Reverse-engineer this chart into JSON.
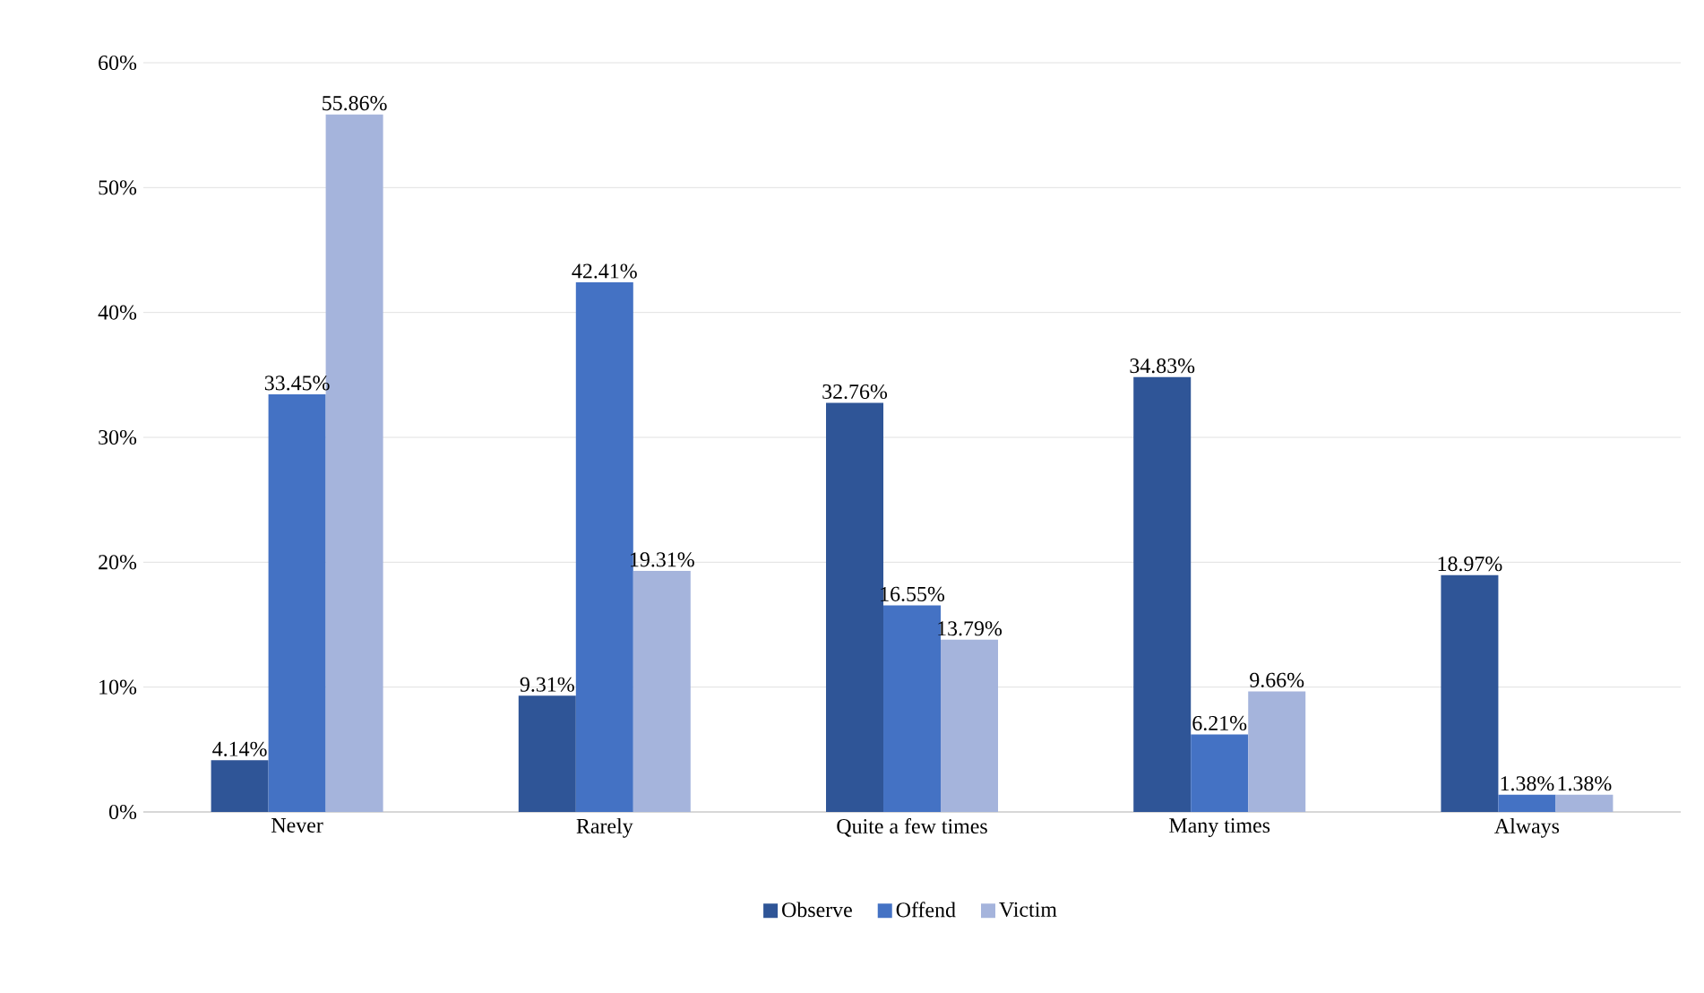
{
  "chart_data": {
    "type": "bar",
    "categories": [
      "Never",
      "Rarely",
      "Quite a few times",
      "Many times",
      "Always"
    ],
    "series": [
      {
        "name": "Observe",
        "color": "#2f5597",
        "values": [
          4.14,
          9.31,
          32.76,
          34.83,
          18.97
        ],
        "value_labels": [
          "4.14%",
          "9.31%",
          "32.76%",
          "34.83%",
          "18.97%"
        ]
      },
      {
        "name": "Offend",
        "color": "#4472c4",
        "values": [
          33.45,
          42.41,
          16.55,
          6.21,
          1.38
        ],
        "value_labels": [
          "33.45%",
          "42.41%",
          "16.55%",
          "6.21%",
          "1.38%"
        ]
      },
      {
        "name": "Victim",
        "color": "#a5b4dc",
        "values": [
          55.86,
          19.31,
          13.79,
          9.66,
          1.38
        ],
        "value_labels": [
          "55.86%",
          "19.31%",
          "13.79%",
          "9.66%",
          "1.38%"
        ]
      }
    ],
    "ylim": [
      0,
      60
    ],
    "yticks": [
      {
        "value": 0,
        "label": "0%"
      },
      {
        "value": 10,
        "label": "10%"
      },
      {
        "value": 20,
        "label": "20%"
      },
      {
        "value": 30,
        "label": "30%"
      },
      {
        "value": 40,
        "label": "40%"
      },
      {
        "value": 50,
        "label": "50%"
      },
      {
        "value": 60,
        "label": "60%"
      }
    ],
    "grid": "y",
    "legend": "bottom"
  }
}
